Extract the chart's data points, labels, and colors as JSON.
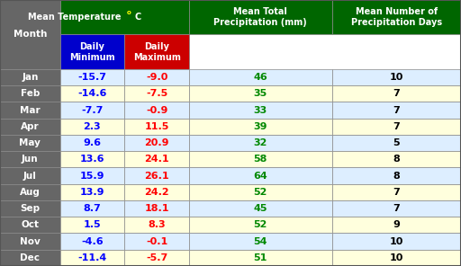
{
  "months": [
    "Jan",
    "Feb",
    "Mar",
    "Apr",
    "May",
    "Jun",
    "Jul",
    "Aug",
    "Sep",
    "Oct",
    "Nov",
    "Dec"
  ],
  "daily_min": [
    -15.7,
    -14.6,
    -7.7,
    2.3,
    9.6,
    13.6,
    15.9,
    13.9,
    8.7,
    1.5,
    -4.6,
    -11.4
  ],
  "daily_max": [
    -9.0,
    -7.5,
    -0.9,
    11.5,
    20.9,
    24.1,
    26.1,
    24.2,
    18.1,
    8.3,
    -0.1,
    -5.7
  ],
  "precipitation_mm": [
    46,
    35,
    33,
    39,
    32,
    58,
    64,
    52,
    45,
    52,
    54,
    51
  ],
  "precipitation_days": [
    10,
    7,
    7,
    7,
    5,
    8,
    8,
    7,
    7,
    9,
    10,
    10
  ],
  "header_bg": "#006600",
  "header_text": "#ffffff",
  "subheader_min_bg": "#0000cc",
  "subheader_max_bg": "#cc0000",
  "subheader_text": "#ffffff",
  "month_col_bg": "#666666",
  "month_col_text": "#ffffff",
  "row_bg_odd": "#ddeeff",
  "row_bg_even": "#ffffdd",
  "min_text_color": "#0000ff",
  "max_text_color": "#ff0000",
  "precip_mm_color": "#008800",
  "precip_days_color": "#000000",
  "border_color": "#888888",
  "title": "Mean Temperature °C",
  "col1_header": "Mean Total\nPrecipitation (mm)",
  "col2_header": "Mean Number of\nPrecipitation Days"
}
